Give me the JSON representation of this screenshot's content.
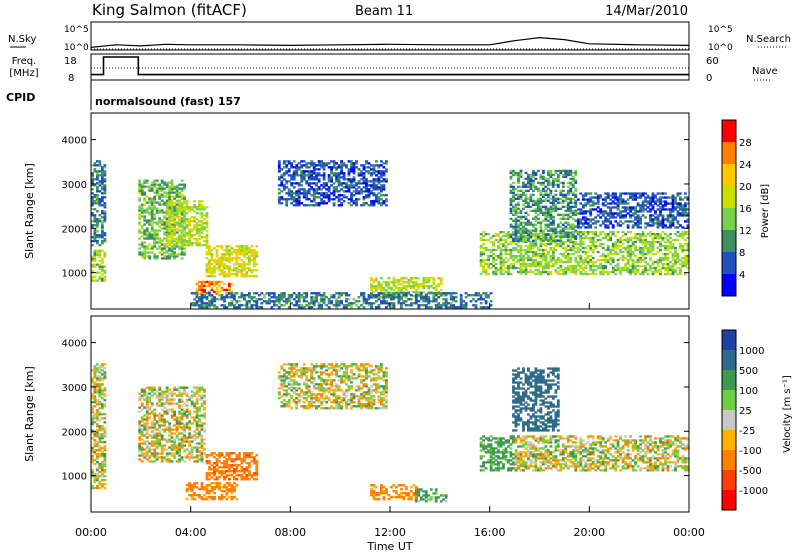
{
  "header": {
    "station": "King Salmon (fitACF)",
    "beam": "Beam 11",
    "date": "14/Mar/2010"
  },
  "top_panels": {
    "nsky_label": "N.Sky",
    "nsearch_label": "N.Search",
    "noise_ticks": [
      "10^5",
      "10^0"
    ],
    "freq_label_1": "Freq.",
    "freq_label_2": "[MHz]",
    "freq_ticks": [
      "18",
      "8"
    ],
    "nave_label": "Nave",
    "nave_ticks": [
      "60",
      "0"
    ],
    "cpid_label": "CPID",
    "cpid_value": "normalsound (fast) 157"
  },
  "panels": {
    "power": {
      "ylabel": "Slant Range [km]",
      "yticks": [
        "4000",
        "3000",
        "2000",
        "1000"
      ],
      "colorbar_label": "Power [dB]",
      "colorbar_ticks": [
        "28",
        "24",
        "20",
        "16",
        "12",
        "8",
        "4"
      ],
      "colorbar_colors": [
        "#ff0000",
        "#ff8000",
        "#ffc800",
        "#c8e000",
        "#78d050",
        "#3c9060",
        "#2050c0",
        "#0000ff"
      ]
    },
    "velocity": {
      "ylabel": "Slant Range [km]",
      "yticks": [
        "4000",
        "3000",
        "2000",
        "1000"
      ],
      "colorbar_label": "Velocity [m s⁻¹]",
      "colorbar_ticks": [
        "1000",
        "500",
        "100",
        "25",
        "-25",
        "-100",
        "-500",
        "-1000"
      ],
      "colorbar_colors": [
        "#2040a0",
        "#2e6a8a",
        "#3c9a50",
        "#6cd040",
        "#c8c8c8",
        "#ffb000",
        "#ff8000",
        "#ff4000",
        "#ff0000"
      ]
    }
  },
  "xaxis": {
    "label": "Time UT",
    "ticks": [
      "00:00",
      "04:00",
      "08:00",
      "12:00",
      "16:00",
      "20:00",
      "00:00"
    ]
  },
  "chart_data": [
    {
      "type": "line",
      "name": "noise-panel",
      "ylabel": "N.Sky / N.Search",
      "x_hours": [
        0,
        1,
        2,
        3,
        4,
        6,
        8,
        10,
        12,
        14,
        16,
        17,
        18,
        19,
        20,
        22,
        24
      ],
      "nsky_log10": [
        0.3,
        0.8,
        0.6,
        0.9,
        0.8,
        0.8,
        0.7,
        0.8,
        0.9,
        0.8,
        0.8,
        1.6,
        2.2,
        1.8,
        1.0,
        0.8,
        0.7
      ],
      "ylim_log10": [
        0,
        5
      ]
    },
    {
      "type": "line",
      "name": "frequency-panel",
      "x_hours": [
        0,
        0.5,
        0.5,
        1.9,
        1.9,
        24
      ],
      "freq_mhz": [
        10,
        10,
        18,
        18,
        10,
        10
      ],
      "freq_ylim": [
        8,
        18
      ],
      "nave": [
        30,
        30,
        30,
        30,
        30,
        30
      ],
      "nave_ylim": [
        0,
        60
      ]
    },
    {
      "type": "heatmap",
      "name": "power",
      "xlim_hours": [
        0,
        24
      ],
      "ylim_km": [
        180,
        4600
      ],
      "zlim_db": [
        0,
        30
      ],
      "cell_hours": 0.1,
      "cell_km": 45,
      "regions": [
        {
          "t0": 0.0,
          "t1": 0.6,
          "r0": 800,
          "r1": 1500,
          "p": 14
        },
        {
          "t0": 0.0,
          "t1": 0.6,
          "r0": 1600,
          "r1": 3500,
          "p": 8
        },
        {
          "t0": 1.9,
          "t1": 3.8,
          "r0": 1300,
          "r1": 3100,
          "p": 12
        },
        {
          "t0": 3.0,
          "t1": 4.6,
          "r0": 1600,
          "r1": 2600,
          "p": 16
        },
        {
          "t0": 4.6,
          "t1": 6.6,
          "r0": 900,
          "r1": 1600,
          "p": 18
        },
        {
          "t0": 4.2,
          "t1": 5.6,
          "r0": 500,
          "r1": 800,
          "p": 24
        },
        {
          "t0": 7.5,
          "t1": 11.8,
          "r0": 2500,
          "r1": 3500,
          "p": 6
        },
        {
          "t0": 11.2,
          "t1": 14.0,
          "r0": 450,
          "r1": 900,
          "p": 16
        },
        {
          "t0": 4.0,
          "t1": 16.0,
          "r0": 200,
          "r1": 550,
          "p": 8
        },
        {
          "t0": 15.6,
          "t1": 24.0,
          "r0": 950,
          "r1": 1900,
          "p": 14
        },
        {
          "t0": 16.8,
          "t1": 19.5,
          "r0": 1700,
          "r1": 3300,
          "p": 10
        },
        {
          "t0": 19.5,
          "t1": 24.0,
          "r0": 2000,
          "r1": 2800,
          "p": 6
        }
      ]
    },
    {
      "type": "heatmap",
      "name": "velocity",
      "xlim_hours": [
        0,
        24
      ],
      "ylim_km": [
        180,
        4600
      ],
      "zlim_ms": [
        -1000,
        1000
      ],
      "cell_hours": 0.1,
      "cell_km": 45,
      "regions": [
        {
          "t0": 0.0,
          "t1": 0.6,
          "r0": 700,
          "r1": 3500,
          "v": 0
        },
        {
          "t0": 1.9,
          "t1": 4.6,
          "r0": 1300,
          "r1": 3000,
          "v": 0
        },
        {
          "t0": 4.6,
          "t1": 6.6,
          "r0": 900,
          "r1": 1500,
          "v": -400
        },
        {
          "t0": 3.8,
          "t1": 5.8,
          "r0": 450,
          "r1": 850,
          "v": -200
        },
        {
          "t0": 7.5,
          "t1": 11.8,
          "r0": 2500,
          "r1": 3500,
          "v": 0
        },
        {
          "t0": 11.2,
          "t1": 13.0,
          "r0": 450,
          "r1": 800,
          "v": -150
        },
        {
          "t0": 13.0,
          "t1": 14.2,
          "r0": 400,
          "r1": 700,
          "v": 150
        },
        {
          "t0": 15.6,
          "t1": 17.0,
          "r0": 1100,
          "r1": 1900,
          "v": 200
        },
        {
          "t0": 17.0,
          "t1": 24.0,
          "r0": 1100,
          "r1": 1900,
          "v": 0
        },
        {
          "t0": 16.9,
          "t1": 18.8,
          "r0": 2000,
          "r1": 3400,
          "v": 700
        }
      ]
    }
  ]
}
